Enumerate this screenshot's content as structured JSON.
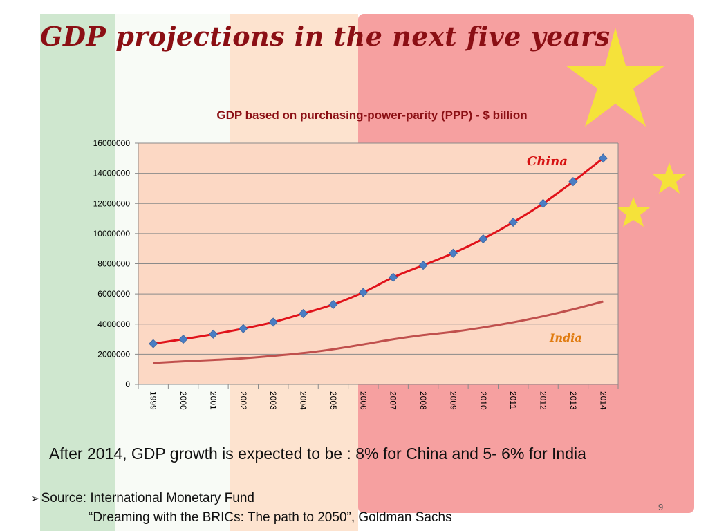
{
  "slide": {
    "title": "GDP projections in the next five years",
    "caption": "After 2014, GDP growth is expected to be :  8% for China and 5- 6% for India",
    "source_line1": "Source: International Monetary Fund",
    "source_line2": "“Dreaming with the BRICs: The path to 2050”, Goldman Sachs",
    "page_number": "9",
    "bullet_icon": "arrow-bullet-icon"
  },
  "colors": {
    "title": "#8b0f14",
    "india_band_green": "#cfe7cf",
    "india_band_orange": "#fde3cf",
    "china_band_red": "#f6a0a0",
    "star_yellow": "#f5e23a",
    "plot_area": "#fcd8c4",
    "china_line": "#e0121a",
    "china_marker": "#4a7ec4",
    "india_line": "#c0504d",
    "china_label": "#d61212",
    "india_label": "#e07b0f",
    "chart_title": "#8b0f14"
  },
  "chart_data": {
    "type": "line",
    "title": "GDP based on purchasing-power-parity (PPP) - $ billion",
    "x": [
      "1999",
      "2000",
      "2001",
      "2002",
      "2003",
      "2004",
      "2005",
      "2006",
      "2007",
      "2008",
      "2009",
      "2010",
      "2011",
      "2012",
      "2013",
      "2014"
    ],
    "ylim": [
      0,
      16000000
    ],
    "yticks": [
      "0",
      "2000000",
      "4000000",
      "6000000",
      "8000000",
      "10000000",
      "12000000",
      "14000000",
      "16000000"
    ],
    "grid": true,
    "series": [
      {
        "name": "China",
        "values": [
          2700000,
          3000000,
          3330000,
          3700000,
          4130000,
          4700000,
          5300000,
          6100000,
          7100000,
          7900000,
          8700000,
          9650000,
          10750000,
          12000000,
          13450000,
          15000000
        ],
        "markers": true
      },
      {
        "name": "India",
        "values": [
          1420000,
          1530000,
          1620000,
          1730000,
          1890000,
          2080000,
          2330000,
          2650000,
          2990000,
          3270000,
          3490000,
          3780000,
          4120000,
          4520000,
          4980000,
          5500000
        ],
        "markers": false
      }
    ]
  }
}
